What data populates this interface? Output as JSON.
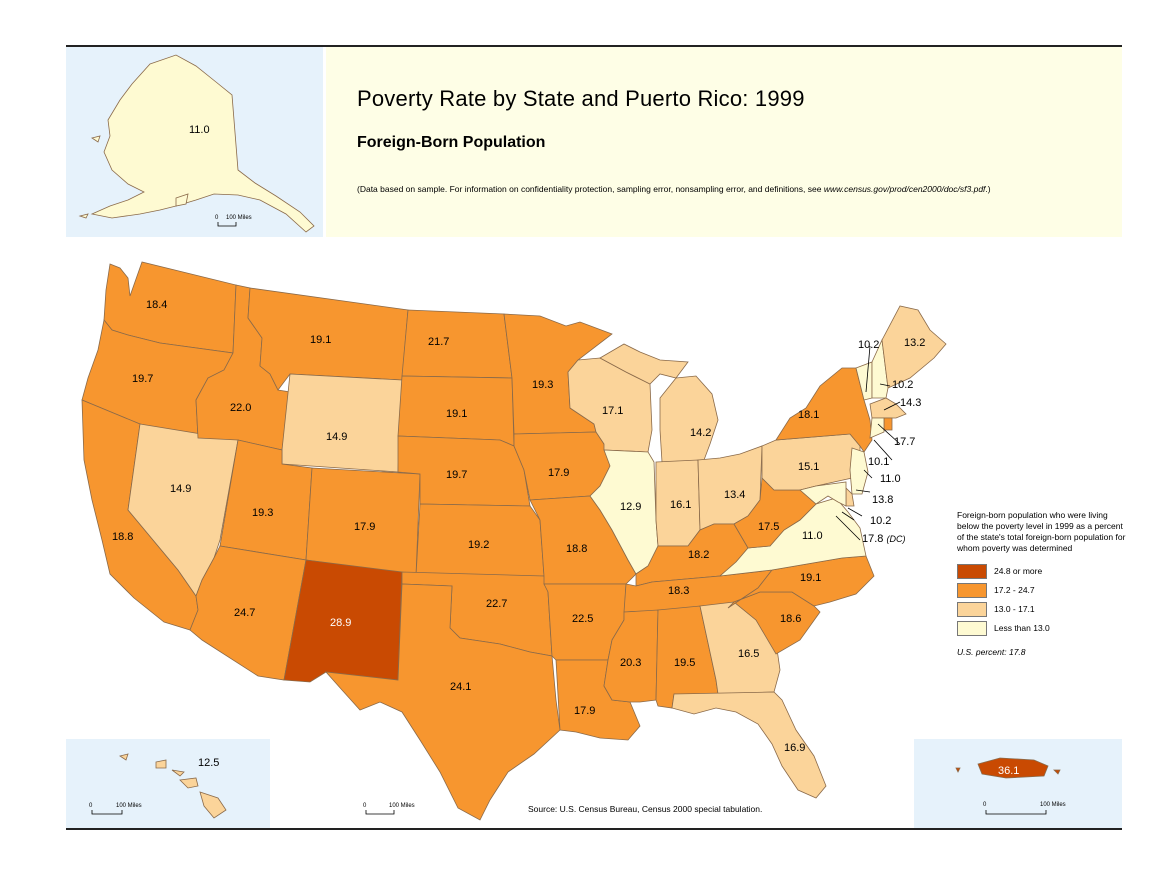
{
  "header": {
    "title": "Poverty Rate by State and Puerto Rico: 1999",
    "subtitle": "Foreign-Born Population",
    "note_prefix": "(Data based on sample.  For information on confidentiality protection, sampling error, nonsampling error, and definitions, see ",
    "note_url": "www.census.gov/prod/cen2000/doc/sf3.pdf",
    "note_suffix": ".)"
  },
  "source": "Source: U.S. Census Bureau, Census 2000 special tabulation.",
  "legend": {
    "header": "Foreign-born population who were living below the poverty level in 1999 as a percent of the state's total foreign-born population for whom poverty was determined",
    "classes": [
      {
        "label": "24.8 or more",
        "color": "#c94a02"
      },
      {
        "label": "17.2 - 24.7",
        "color": "#f7962f"
      },
      {
        "label": "13.0 - 17.1",
        "color": "#fbd49a"
      },
      {
        "label": "Less than 13.0",
        "color": "#fefad2"
      }
    ],
    "us_percent": "U.S. percent: 17.8"
  },
  "scale": {
    "zero": "0",
    "miles": "100 Miles"
  },
  "colors": {
    "inset_bg": "#e6f2fb",
    "header_bg": "#fefee6",
    "border": "#8a6a4a"
  },
  "states": [
    {
      "name": "Washington",
      "value": "18.4"
    },
    {
      "name": "Oregon",
      "value": "19.7"
    },
    {
      "name": "California",
      "value": "18.8"
    },
    {
      "name": "Nevada",
      "value": "14.9"
    },
    {
      "name": "Idaho",
      "value": "22.0"
    },
    {
      "name": "Montana",
      "value": "19.1"
    },
    {
      "name": "Wyoming",
      "value": "14.9"
    },
    {
      "name": "Utah",
      "value": "19.3"
    },
    {
      "name": "Arizona",
      "value": "24.7"
    },
    {
      "name": "Colorado",
      "value": "17.9"
    },
    {
      "name": "New Mexico",
      "value": "28.9"
    },
    {
      "name": "North Dakota",
      "value": "21.7"
    },
    {
      "name": "South Dakota",
      "value": "19.1"
    },
    {
      "name": "Nebraska",
      "value": "19.7"
    },
    {
      "name": "Kansas",
      "value": "19.2"
    },
    {
      "name": "Oklahoma",
      "value": "22.7"
    },
    {
      "name": "Texas",
      "value": "24.1"
    },
    {
      "name": "Minnesota",
      "value": "19.3"
    },
    {
      "name": "Iowa",
      "value": "17.9"
    },
    {
      "name": "Missouri",
      "value": "18.8"
    },
    {
      "name": "Arkansas",
      "value": "22.5"
    },
    {
      "name": "Louisiana",
      "value": "17.9"
    },
    {
      "name": "Wisconsin",
      "value": "17.1"
    },
    {
      "name": "Illinois",
      "value": "12.9"
    },
    {
      "name": "Michigan",
      "value": "14.2"
    },
    {
      "name": "Indiana",
      "value": "16.1"
    },
    {
      "name": "Ohio",
      "value": "13.4"
    },
    {
      "name": "Kentucky",
      "value": "18.2"
    },
    {
      "name": "Tennessee",
      "value": "18.3"
    },
    {
      "name": "Mississippi",
      "value": "20.3"
    },
    {
      "name": "Alabama",
      "value": "19.5"
    },
    {
      "name": "Georgia",
      "value": "16.5"
    },
    {
      "name": "Florida",
      "value": "16.9"
    },
    {
      "name": "South Carolina",
      "value": "18.6"
    },
    {
      "name": "North Carolina",
      "value": "19.1"
    },
    {
      "name": "Virginia",
      "value": "11.0"
    },
    {
      "name": "West Virginia",
      "value": "17.5"
    },
    {
      "name": "Pennsylvania",
      "value": "15.1"
    },
    {
      "name": "New York",
      "value": "18.1"
    },
    {
      "name": "Vermont",
      "value": "10.2"
    },
    {
      "name": "New Hampshire",
      "value": "10.2"
    },
    {
      "name": "Maine",
      "value": "13.2"
    },
    {
      "name": "Massachusetts",
      "value": "14.3"
    },
    {
      "name": "Rhode Island",
      "value": "17.7"
    },
    {
      "name": "Connecticut",
      "value": "10.1"
    },
    {
      "name": "New Jersey",
      "value": "11.0"
    },
    {
      "name": "Delaware",
      "value": "13.8"
    },
    {
      "name": "Maryland",
      "value": "10.2"
    },
    {
      "name": "District of Columbia",
      "value": "17.8",
      "suffix": "(DC)"
    },
    {
      "name": "Alaska",
      "value": "11.0"
    },
    {
      "name": "Hawaii",
      "value": "12.5"
    },
    {
      "name": "Puerto Rico",
      "value": "36.1"
    }
  ]
}
